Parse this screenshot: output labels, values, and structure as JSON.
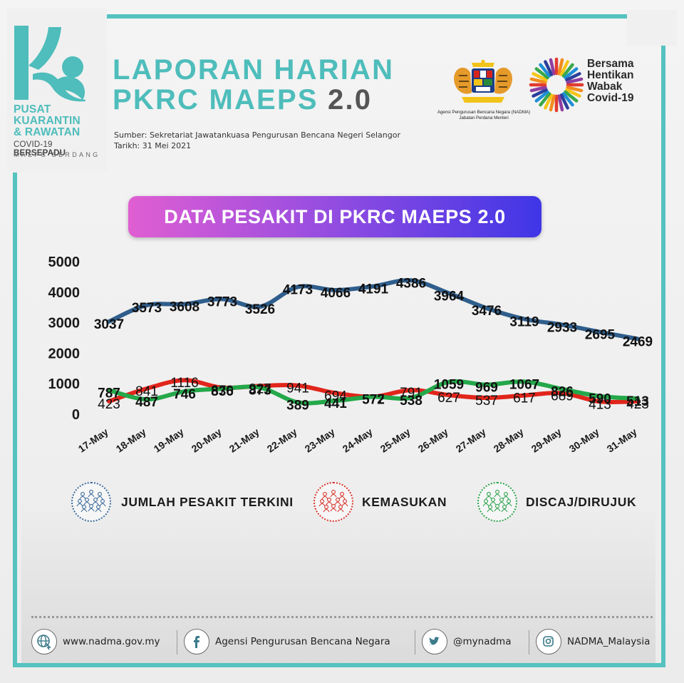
{
  "logo": {
    "line1": "PUSAT",
    "line2": "KUARANTIN",
    "line3": "& RAWATAN",
    "line4a": "COVID-19 ",
    "line4b": "BERSEPADU",
    "line5": "MAEPS SERDANG"
  },
  "header": {
    "title_line1": "LAPORAN HARIAN",
    "title_line2": "PKRC MAEPS",
    "title_version": "2.0",
    "source": "Sumber: Sekretariat Jawatankuasa Pengurusan Bencana Negeri Selangor",
    "date": "Tarikh: 31 Mei 2021"
  },
  "partners": {
    "agency_line1": "Agensi Pengurusan Bencana Negara (NADMA)",
    "agency_line2": "Jabatan Perdana Menteri",
    "campaign": [
      "Bersama",
      "Hentikan",
      "Wabak",
      "Covid-19"
    ]
  },
  "banner": {
    "title": "DATA PESAKIT DI PKRC MAEPS 2.0"
  },
  "colors": {
    "teal": "#4ebdbb",
    "jumlah": "#2f5e8c",
    "kemasukan": "#e1251b",
    "discaj": "#24a84a"
  },
  "chart_data": {
    "type": "line",
    "categories": [
      "17-May",
      "18-May",
      "19-May",
      "20-May",
      "21-May",
      "22-May",
      "23-May",
      "24-May",
      "25-May",
      "26-May",
      "27-May",
      "28-May",
      "29-May",
      "30-May",
      "31-May"
    ],
    "ylim": [
      0,
      5000
    ],
    "yticks": [
      "0",
      "1000",
      "2000",
      "3000",
      "4000",
      "5000"
    ],
    "grid": false,
    "legend_position": "bottom",
    "series": [
      {
        "name": "JUMLAH PESAKIT TERKINI",
        "color": "#2f5e8c",
        "values": [
          3037,
          3573,
          3608,
          3773,
          3526,
          4173,
          4066,
          4191,
          4386,
          3964,
          3476,
          3119,
          2933,
          2695,
          2469
        ]
      },
      {
        "name": "KEMASUKAN",
        "color": "#e1251b",
        "values": [
          423,
          841,
          1116,
          870,
          927,
          941,
          694,
          577,
          791,
          627,
          537,
          617,
          689,
          413,
          423
        ]
      },
      {
        "name": "DISCAJ/DIRUJUK",
        "color": "#24a84a",
        "values": [
          787,
          487,
          746,
          836,
          873,
          389,
          441,
          572,
          538,
          1059,
          969,
          1067,
          826,
          590,
          513
        ]
      }
    ]
  },
  "footer": {
    "website": "www.nadma.gov.my",
    "facebook": "Agensi Pengurusan Bencana Negara",
    "twitter": "@mynadma",
    "instagram": "NADMA_Malaysia"
  }
}
